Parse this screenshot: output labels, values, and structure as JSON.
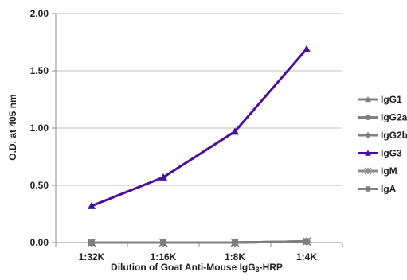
{
  "chart_data": {
    "type": "line",
    "categories": [
      "1:32K",
      "1:16K",
      "1:8K",
      "1:4K"
    ],
    "ylabel": "O.D. at 405 nm",
    "xlabel_parts": [
      "Dilution of Goat Anti-Mouse IgG",
      "3",
      "-HRP"
    ],
    "ylim": [
      0,
      2
    ],
    "yticks": [
      "0.00",
      "0.50",
      "1.00",
      "1.50",
      "2.00"
    ],
    "ytick_values": [
      0,
      0.5,
      1.0,
      1.5,
      2.0
    ],
    "grid": true,
    "legend_position": "right",
    "series": [
      {
        "name": "IgG1",
        "values": [
          0.0,
          0.0,
          0.0,
          0.01
        ],
        "color": "#7f7f7f",
        "marker": "triangle"
      },
      {
        "name": "IgG2a",
        "values": [
          0.0,
          0.0,
          0.0,
          0.01
        ],
        "color": "#7f7f7f",
        "marker": "circle"
      },
      {
        "name": "IgG2b",
        "values": [
          0.0,
          0.0,
          0.0,
          0.01
        ],
        "color": "#7f7f7f",
        "marker": "diamond"
      },
      {
        "name": "IgG3",
        "values": [
          0.32,
          0.57,
          0.97,
          1.69
        ],
        "color": "#4b0fa0",
        "marker": "triangle"
      },
      {
        "name": "IgM",
        "values": [
          0.0,
          0.0,
          0.0,
          0.01
        ],
        "color": "#8c8c8c",
        "marker": "star"
      },
      {
        "name": "IgA",
        "values": [
          0.0,
          0.0,
          0.0,
          0.01
        ],
        "color": "#7f7f7f",
        "marker": "square"
      }
    ]
  }
}
